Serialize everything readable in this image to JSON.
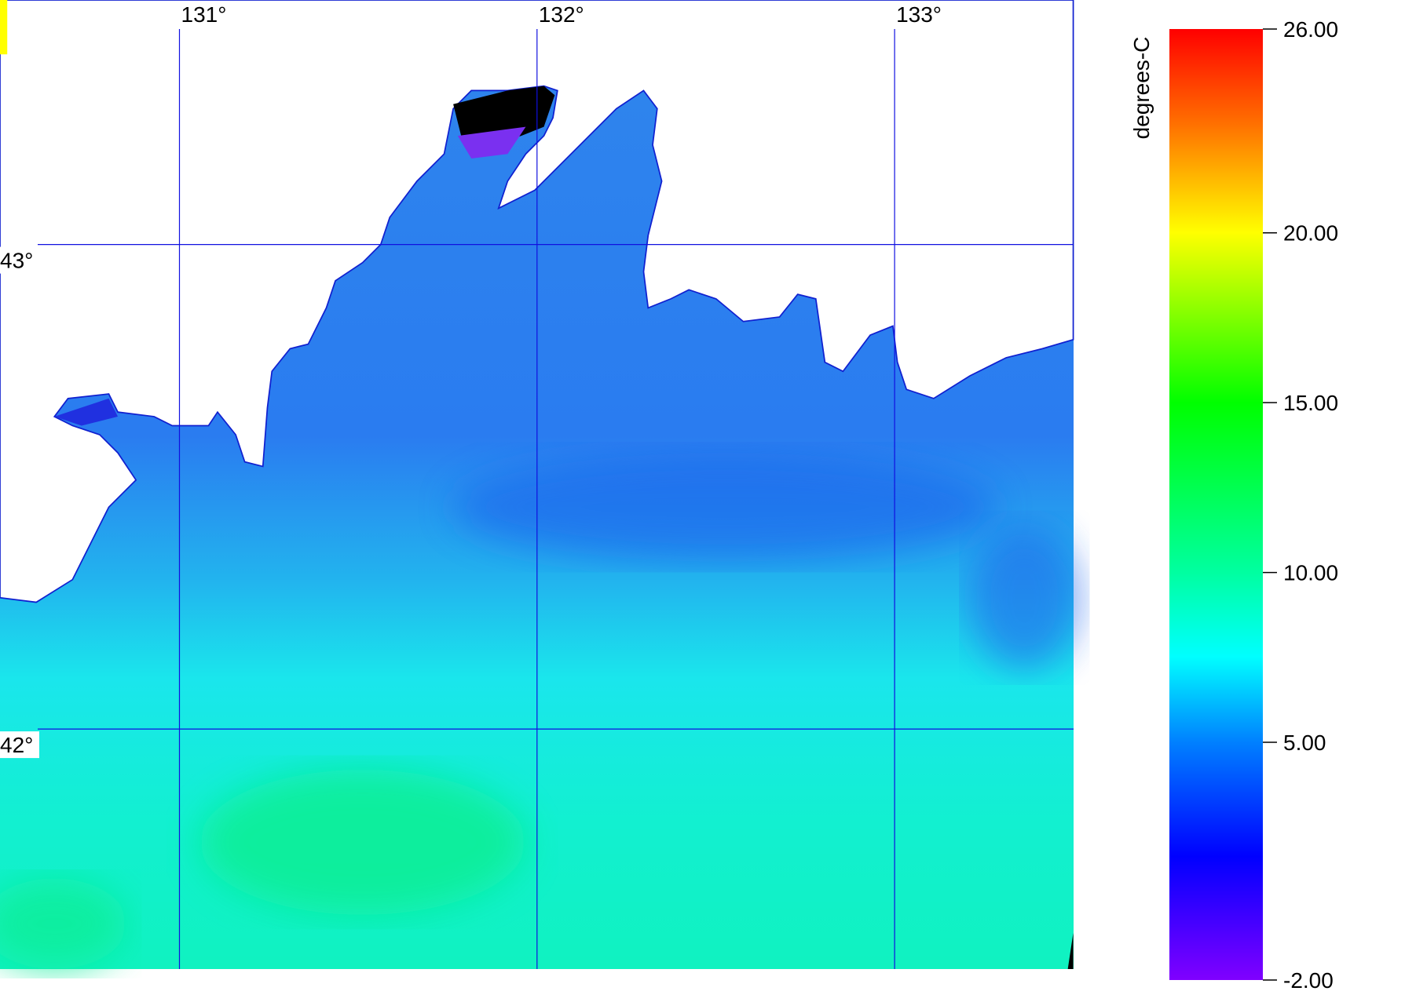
{
  "map": {
    "longitudes": [
      {
        "value": 131,
        "label": "131°"
      },
      {
        "value": 132,
        "label": "132°"
      },
      {
        "value": 133,
        "label": "133°"
      }
    ],
    "latitudes": [
      {
        "value": 43,
        "label": "43°"
      },
      {
        "value": 42,
        "label": "42°"
      }
    ]
  },
  "colorbar": {
    "label": "degrees-C",
    "range": [
      -2,
      26
    ],
    "ticks": [
      {
        "value": 26,
        "label": "26.00"
      },
      {
        "value": 20,
        "label": "20.00"
      },
      {
        "value": 15,
        "label": "15.00"
      },
      {
        "value": 10,
        "label": "10.00"
      },
      {
        "value": 5,
        "label": "5.00"
      },
      {
        "value": -2,
        "label": "-2.00"
      }
    ]
  }
}
